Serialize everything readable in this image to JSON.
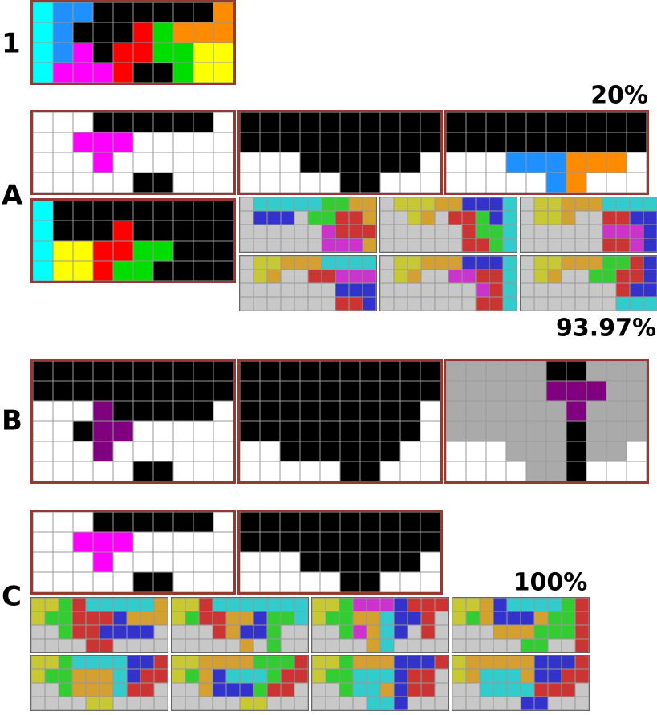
{
  "sections": [
    {
      "label": "1"
    },
    {
      "label": "A",
      "top_score": "20%",
      "bottom_score": "93.97%"
    },
    {
      "label": "B"
    },
    {
      "label": "C",
      "score": "100%"
    }
  ]
}
